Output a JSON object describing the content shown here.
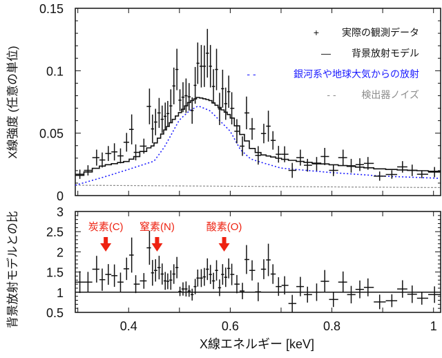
{
  "chart_data": [
    {
      "type": "scatter",
      "panel": "upper",
      "ylabel": "X線強度 (任意の単位)",
      "xlim": [
        0.295,
        1.014
      ],
      "ylim": [
        0,
        0.15
      ],
      "yticks": [
        "0",
        "0.05",
        "0.1",
        "0.15"
      ],
      "legend_placement": "top-right",
      "legend": [
        {
          "symbol": "+",
          "label": "実際の観測データ",
          "color": "#111111"
        },
        {
          "symbol": "—",
          "label": "背景放射モデル",
          "color": "#111111"
        },
        {
          "symbol": "- -",
          "label": "銀河系や地球大気からの放射",
          "color": "#1a1aff"
        },
        {
          "symbol": "- -",
          "label": "検出器ノイズ",
          "color": "#8c8c8c"
        }
      ],
      "observed": {
        "x": [
          0.304,
          0.32,
          0.337,
          0.348,
          0.36,
          0.372,
          0.384,
          0.396,
          0.406,
          0.414,
          0.43,
          0.441,
          0.447,
          0.453,
          0.46,
          0.466,
          0.472,
          0.477,
          0.483,
          0.489,
          0.495,
          0.501,
          0.507,
          0.513,
          0.519,
          0.525,
          0.531,
          0.536,
          0.543,
          0.549,
          0.555,
          0.561,
          0.567,
          0.573,
          0.579,
          0.585,
          0.591,
          0.597,
          0.603,
          0.613,
          0.624,
          0.632,
          0.643,
          0.655,
          0.666,
          0.675,
          0.684,
          0.695,
          0.707,
          0.722,
          0.738,
          0.752,
          0.77,
          0.786,
          0.803,
          0.822,
          0.838,
          0.855,
          0.871,
          0.894,
          0.918,
          0.939,
          0.958,
          0.977,
          1.002
        ],
        "y": [
          0.0171,
          0.0202,
          0.0304,
          0.0285,
          0.0337,
          0.035,
          0.0318,
          0.0427,
          0.053,
          0.0346,
          0.0396,
          0.0714,
          0.0534,
          0.0589,
          0.0662,
          0.0611,
          0.0635,
          0.0657,
          0.0718,
          0.0878,
          0.101,
          0.0764,
          0.0788,
          0.08,
          0.0791,
          0.0681,
          0.0883,
          0.106,
          0.1036,
          0.1036,
          0.114,
          0.1036,
          0.0874,
          0.101,
          0.0694,
          0.0856,
          0.0736,
          0.0832,
          0.0699,
          0.0515,
          0.0396,
          0.0662,
          0.0534,
          0.0322,
          0.0497,
          0.0556,
          0.0442,
          0.0331,
          0.0331,
          0.0202,
          0.0304,
          0.0243,
          0.0254,
          0.0313,
          0.0202,
          0.0304,
          0.0239,
          0.0248,
          0.0258,
          0.0156,
          0.0169,
          0.023,
          0.0202,
          0.0171,
          0.0188
        ],
        "yerr": [
          0.0037,
          0.0041,
          0.0064,
          0.006,
          0.006,
          0.0069,
          0.006,
          0.0075,
          0.012,
          0.0064,
          0.006,
          0.0143,
          0.0115,
          0.0106,
          0.012,
          0.011,
          0.011,
          0.0101,
          0.0133,
          0.0147,
          0.0166,
          0.0087,
          0.012,
          0.0138,
          0.011,
          0.0106,
          0.0147,
          0.0166,
          0.017,
          0.0166,
          0.0195,
          0.017,
          0.0138,
          0.0166,
          0.0129,
          0.0152,
          0.0129,
          0.0129,
          0.0129,
          0.0097,
          0.0078,
          0.0131,
          0.0087,
          0.0074,
          0.0078,
          0.0124,
          0.0074,
          0.0067,
          0.0064,
          0.006,
          0.0064,
          0.0051,
          0.0055,
          0.0069,
          0.0046,
          0.0064,
          0.0055,
          0.0051,
          0.0051,
          0.0037,
          0.0034,
          0.0046,
          0.0046,
          0.0032,
          0.0041
        ]
      },
      "background_model": {
        "x": [
          0.295,
          0.35,
          0.4,
          0.45,
          0.48,
          0.5,
          0.52,
          0.537,
          0.56,
          0.6,
          0.62,
          0.64,
          0.66,
          0.7,
          0.75,
          0.8,
          0.9,
          1.014
        ],
        "y": [
          0.0147,
          0.024,
          0.0276,
          0.0405,
          0.057,
          0.066,
          0.075,
          0.0788,
          0.0764,
          0.064,
          0.0515,
          0.0386,
          0.0331,
          0.0294,
          0.0267,
          0.0248,
          0.0212,
          0.0193
        ]
      },
      "galactic_atmospheric": {
        "x": [
          0.295,
          0.35,
          0.4,
          0.45,
          0.47,
          0.5,
          0.52,
          0.537,
          0.56,
          0.6,
          0.62,
          0.64,
          0.66,
          0.7,
          0.8,
          0.9,
          1.014
        ],
        "y": [
          0.0083,
          0.0147,
          0.021,
          0.0276,
          0.0386,
          0.0607,
          0.068,
          0.0718,
          0.068,
          0.0515,
          0.0368,
          0.0294,
          0.0267,
          0.022,
          0.0184,
          0.0156,
          0.0138
        ]
      },
      "detector_noise": {
        "x": [
          0.295,
          1.014
        ],
        "y": [
          0.0083,
          0.0064
        ]
      }
    },
    {
      "type": "scatter",
      "panel": "lower",
      "xlabel": "X線エネルギー [keV]",
      "ylabel": "背景放射モデルとの比",
      "xlim": [
        0.295,
        1.014
      ],
      "ylim": [
        0.5,
        3
      ],
      "xticks": [
        "0.4",
        "0.6",
        "0.8",
        "1"
      ],
      "yticks": [
        "0.5",
        "1",
        "1.5",
        "2",
        "2.5",
        "3"
      ],
      "reference_line": 1,
      "ratio": [
        1.25,
        1.25,
        1.57,
        1.31,
        1.44,
        1.41,
        1.25,
        1.58,
        1.92,
        1.2,
        1.28,
        2.1,
        1.48,
        1.54,
        1.61,
        1.45,
        1.28,
        1.27,
        1.3,
        1.45,
        1.61,
        1.02,
        1.08,
        1.08,
        1.03,
        0.94,
        1.14,
        1.35,
        1.35,
        1.38,
        1.57,
        1.44,
        1.28,
        1.54,
        1.11,
        1.44,
        1.37,
        1.59,
        1.44,
        1.2,
        1.03,
        1.81,
        1.54,
        1.01,
        1.57,
        1.8,
        1.45,
        1.14,
        1.17,
        0.72,
        1.14,
        0.94,
        1.0,
        1.27,
        0.82,
        1.25,
        0.94,
        1.07,
        1.12,
        0.76,
        0.79,
        1.08,
        0.95,
        0.85,
        0.94
      ],
      "annotations": [
        {
          "label": "炭素(C)",
          "x": 0.355
        },
        {
          "label": "窒素(N)",
          "x": 0.456
        },
        {
          "label": "酸素(O)",
          "x": 0.588
        }
      ],
      "annotation_color": "#ee2211"
    }
  ]
}
